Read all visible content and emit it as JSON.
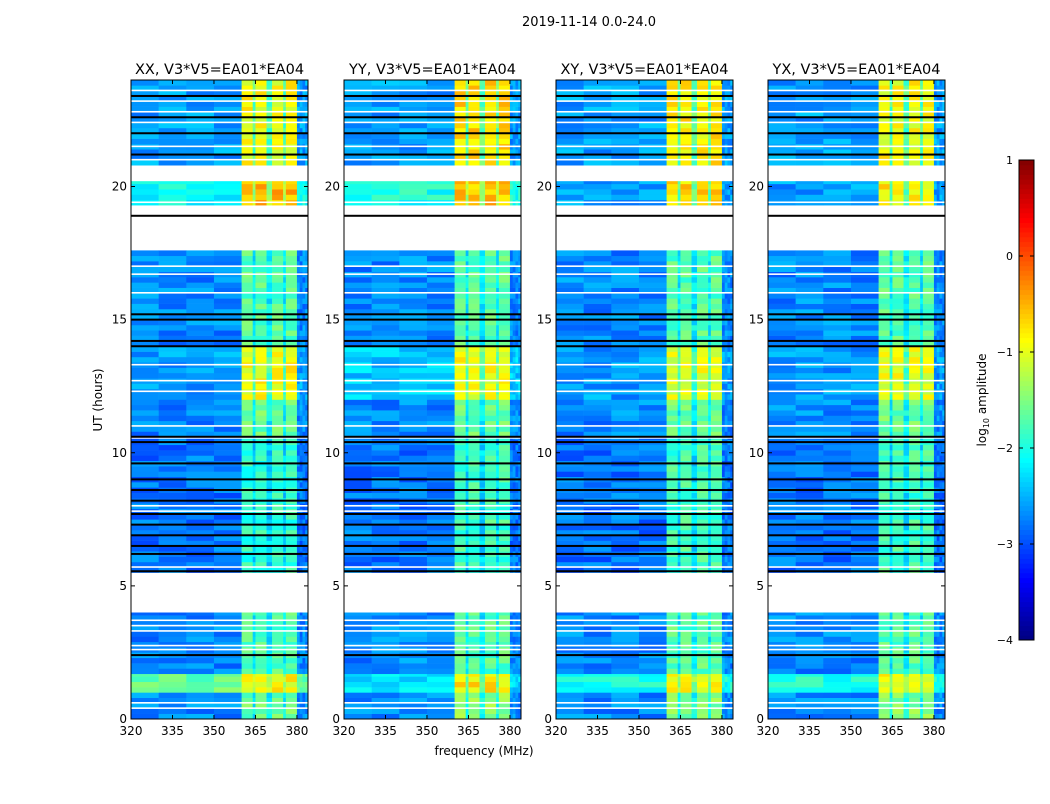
{
  "chart_data": {
    "type": "heatmap",
    "title": "2019-11-14 0.0-24.0",
    "xlabel": "frequency (MHz)",
    "ylabel": "UT (hours)",
    "xlim": [
      320,
      384
    ],
    "ylim": [
      0,
      24
    ],
    "xticks": [
      320,
      335,
      350,
      365,
      380
    ],
    "yticks": [
      0,
      5,
      10,
      15,
      20
    ],
    "colorbar": {
      "label": "log10 amplitude",
      "label_main": "log",
      "label_sub": "10",
      "label_rest": " amplitude",
      "range": [
        -4,
        1
      ],
      "ticks": [
        1,
        0,
        -1,
        -2,
        -3,
        -4
      ],
      "tick_labels": [
        "1",
        "0",
        "−1",
        "−2",
        "−3",
        "−4"
      ],
      "colormap": "jet"
    },
    "freq_columns": [
      [
        320,
        360,
        "bg"
      ],
      [
        360,
        364,
        "hi"
      ],
      [
        364,
        365,
        "lo"
      ],
      [
        365,
        369,
        "hi"
      ],
      [
        369,
        371,
        "lo"
      ],
      [
        371,
        375,
        "hi"
      ],
      [
        375,
        376,
        "lo"
      ],
      [
        376,
        380,
        "hi"
      ],
      [
        380,
        384,
        "bg"
      ]
    ],
    "gaps_hours": [
      [
        4.0,
        5.5
      ],
      [
        17.6,
        19.3
      ],
      [
        20.2,
        20.8
      ]
    ],
    "flag_lines_white": [
      0.4,
      0.6,
      2.6,
      2.75,
      3.3,
      3.5,
      3.7,
      5.7,
      7.8,
      8.0,
      10.55,
      11.0,
      12.3,
      12.7,
      13.3,
      16.0,
      16.7,
      17.0,
      19.4,
      21.0,
      21.5,
      22.4,
      22.8,
      23.2,
      23.6
    ],
    "flag_lines_black": [
      2.4,
      5.55,
      6.2,
      6.5,
      6.9,
      7.3,
      7.7,
      8.2,
      8.6,
      9.0,
      9.6,
      10.4,
      10.6,
      14.0,
      14.2,
      15.0,
      15.2,
      18.9,
      21.2,
      22.0,
      22.6,
      23.4
    ],
    "panels": [
      {
        "title": "XX, V3*V5=EA01*EA04",
        "blocks": [
          [
            0,
            1.0,
            -2.7,
            -1.6
          ],
          [
            1.0,
            1.7,
            -1.6,
            -0.9
          ],
          [
            1.7,
            4.0,
            -2.7,
            -1.7
          ],
          [
            5.5,
            10.6,
            -2.8,
            -1.9
          ],
          [
            10.6,
            12.0,
            -2.7,
            -1.6
          ],
          [
            12.0,
            14.0,
            -2.6,
            -0.9
          ],
          [
            14.0,
            17.6,
            -2.7,
            -1.7
          ],
          [
            19.3,
            20.2,
            -2.1,
            -0.5
          ],
          [
            20.8,
            24,
            -2.6,
            -0.9
          ]
        ]
      },
      {
        "title": "YY, V3*V5=EA01*EA04",
        "blocks": [
          [
            0,
            1.0,
            -2.7,
            -1.4
          ],
          [
            1.0,
            1.7,
            -2.3,
            -0.8
          ],
          [
            1.7,
            4.0,
            -2.7,
            -1.7
          ],
          [
            5.5,
            10.6,
            -2.8,
            -1.8
          ],
          [
            10.6,
            12.0,
            -2.7,
            -1.6
          ],
          [
            12.0,
            14.0,
            -2.4,
            -0.9
          ],
          [
            14.0,
            17.6,
            -2.7,
            -1.7
          ],
          [
            19.3,
            20.2,
            -2.0,
            -0.6
          ],
          [
            20.8,
            24,
            -2.6,
            -0.7
          ]
        ]
      },
      {
        "title": "XY, V3*V5=EA01*EA04",
        "blocks": [
          [
            0,
            1.0,
            -2.7,
            -1.5
          ],
          [
            1.0,
            1.7,
            -2.0,
            -0.9
          ],
          [
            1.7,
            4.0,
            -2.7,
            -1.7
          ],
          [
            5.5,
            10.6,
            -2.8,
            -1.8
          ],
          [
            10.6,
            12.0,
            -2.7,
            -1.6
          ],
          [
            12.0,
            14.0,
            -2.6,
            -1.0
          ],
          [
            14.0,
            17.6,
            -2.7,
            -1.7
          ],
          [
            19.3,
            20.2,
            -2.6,
            -0.7
          ],
          [
            20.8,
            24,
            -2.6,
            -0.8
          ]
        ]
      },
      {
        "title": "YX, V3*V5=EA01*EA04",
        "blocks": [
          [
            0,
            1.0,
            -2.7,
            -1.5
          ],
          [
            1.0,
            1.7,
            -2.0,
            -0.9
          ],
          [
            1.7,
            4.0,
            -2.7,
            -1.7
          ],
          [
            5.5,
            10.6,
            -2.8,
            -1.8
          ],
          [
            10.6,
            12.0,
            -2.7,
            -1.6
          ],
          [
            12.0,
            14.0,
            -2.6,
            -1.0
          ],
          [
            14.0,
            17.6,
            -2.7,
            -1.7
          ],
          [
            19.3,
            20.2,
            -2.6,
            -0.8
          ],
          [
            20.8,
            24,
            -2.6,
            -0.9
          ]
        ]
      }
    ]
  }
}
